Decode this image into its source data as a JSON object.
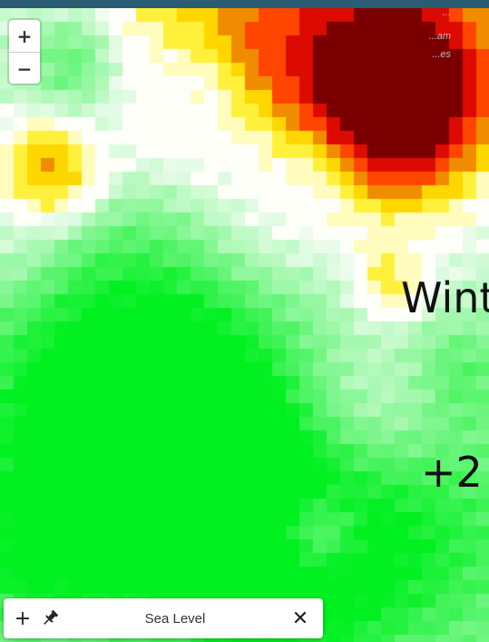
{
  "map": {
    "zoom_in_label": "+",
    "zoom_out_label": "−",
    "place_labels": [
      "...",
      "...am",
      "...es"
    ],
    "overlay_title_line1": "Wint",
    "overlay_title_line2": "+2 "
  },
  "layer_bar": {
    "add_label": "+",
    "layer_name": "Sea Level",
    "close_label": "✕"
  },
  "colors": {
    "dark_red": "#7a0000",
    "red": "#ff2a00",
    "orange": "#f08a00",
    "yellow": "#ffee00",
    "pale_green": "#e8fbe8",
    "bright_green": "#00f024",
    "header_bar": "#2a5d73"
  }
}
